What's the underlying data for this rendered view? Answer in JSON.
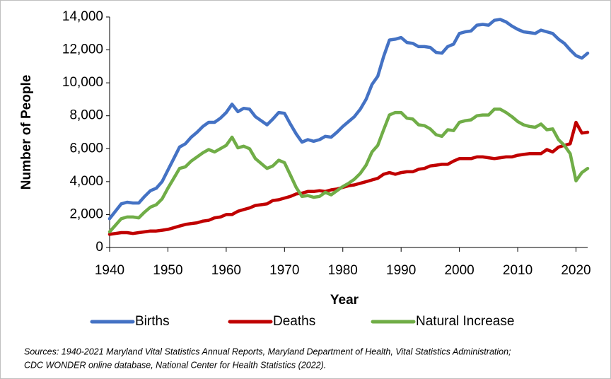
{
  "chart_data": {
    "type": "line",
    "x": [
      1940,
      1941,
      1942,
      1943,
      1944,
      1945,
      1946,
      1947,
      1948,
      1949,
      1950,
      1951,
      1952,
      1953,
      1954,
      1955,
      1956,
      1957,
      1958,
      1959,
      1960,
      1961,
      1962,
      1963,
      1964,
      1965,
      1966,
      1967,
      1968,
      1969,
      1970,
      1971,
      1972,
      1973,
      1974,
      1975,
      1976,
      1977,
      1978,
      1979,
      1980,
      1981,
      1982,
      1983,
      1984,
      1985,
      1986,
      1987,
      1988,
      1989,
      1990,
      1991,
      1992,
      1993,
      1994,
      1995,
      1996,
      1997,
      1998,
      1999,
      2000,
      2001,
      2002,
      2003,
      2004,
      2005,
      2006,
      2007,
      2008,
      2009,
      2010,
      2011,
      2012,
      2013,
      2014,
      2015,
      2016,
      2017,
      2018,
      2019,
      2020,
      2021,
      2022
    ],
    "series": [
      {
        "name": "Births",
        "color": "#4472c4",
        "values": [
          1750,
          2200,
          2650,
          2750,
          2700,
          2700,
          3100,
          3450,
          3600,
          4000,
          4700,
          5400,
          6100,
          6300,
          6700,
          7000,
          7350,
          7600,
          7600,
          7850,
          8200,
          8700,
          8250,
          8450,
          8400,
          7950,
          7700,
          7450,
          7800,
          8200,
          8150,
          7500,
          6900,
          6400,
          6550,
          6450,
          6550,
          6750,
          6700,
          7000,
          7350,
          7650,
          7950,
          8400,
          9000,
          9900,
          10400,
          11600,
          12600,
          12650,
          12750,
          12450,
          12400,
          12200,
          12200,
          12150,
          11850,
          11800,
          12200,
          12350,
          13000,
          13100,
          13150,
          13500,
          13550,
          13500,
          13800,
          13850,
          13700,
          13450,
          13250,
          13100,
          13050,
          13000,
          13200,
          13100,
          13000,
          12650,
          12400,
          12000,
          11650,
          11500,
          11800
        ]
      },
      {
        "name": "Deaths",
        "color": "#c00000",
        "values": [
          800,
          850,
          900,
          900,
          850,
          900,
          950,
          1000,
          1000,
          1050,
          1100,
          1200,
          1300,
          1400,
          1450,
          1500,
          1600,
          1650,
          1800,
          1850,
          2000,
          2000,
          2200,
          2300,
          2400,
          2550,
          2600,
          2650,
          2850,
          2900,
          3000,
          3100,
          3250,
          3300,
          3400,
          3400,
          3450,
          3400,
          3500,
          3550,
          3650,
          3750,
          3800,
          3900,
          4000,
          4100,
          4200,
          4450,
          4550,
          4450,
          4550,
          4600,
          4600,
          4750,
          4800,
          4950,
          5000,
          5050,
          5050,
          5250,
          5400,
          5400,
          5400,
          5500,
          5500,
          5450,
          5400,
          5450,
          5500,
          5500,
          5600,
          5650,
          5700,
          5700,
          5700,
          5950,
          5800,
          6100,
          6200,
          6300,
          7600,
          6950,
          7000
        ]
      },
      {
        "name": "Natural Increase",
        "color": "#70ad47",
        "values": [
          950,
          1350,
          1750,
          1850,
          1850,
          1800,
          2150,
          2450,
          2600,
          2950,
          3600,
          4200,
          4800,
          4900,
          5250,
          5500,
          5750,
          5950,
          5800,
          6000,
          6200,
          6700,
          6050,
          6150,
          6000,
          5400,
          5100,
          4800,
          4950,
          5300,
          5150,
          4400,
          3650,
          3100,
          3150,
          3050,
          3100,
          3350,
          3200,
          3450,
          3700,
          3900,
          4150,
          4500,
          5000,
          5800,
          6200,
          7150,
          8050,
          8200,
          8200,
          7850,
          7800,
          7450,
          7400,
          7200,
          6850,
          6750,
          7150,
          7100,
          7600,
          7700,
          7750,
          8000,
          8050,
          8050,
          8400,
          8400,
          8200,
          7950,
          7650,
          7450,
          7350,
          7300,
          7500,
          7150,
          7200,
          6550,
          6200,
          5700,
          4050,
          4550,
          4800
        ]
      }
    ],
    "xlabel": "Year",
    "ylabel": "Number of People",
    "xlim": [
      1940,
      2022
    ],
    "xticks": [
      1940,
      1950,
      1960,
      1970,
      1980,
      1990,
      2000,
      2010,
      2020
    ],
    "ylim": [
      0,
      14000
    ],
    "yticks": [
      0,
      {
        "value": 2000,
        "label": "2,000"
      },
      {
        "value": 4000,
        "label": "4,000"
      },
      {
        "value": 6000,
        "label": "6,000"
      },
      {
        "value": 8000,
        "label": "8,000"
      },
      {
        "value": 10000,
        "label": "10,000"
      },
      {
        "value": 12000,
        "label": "12,000"
      },
      {
        "value": 14000,
        "label": "14,000"
      }
    ],
    "legend": "bottom",
    "notes": [
      "Sources: 1940-2021 Maryland Vital Statistics Annual Reports, Maryland Department of Health, Vital Statistics Administration;",
      "CDC WONDER online database, National Center for Health Statistics (2022)."
    ]
  }
}
